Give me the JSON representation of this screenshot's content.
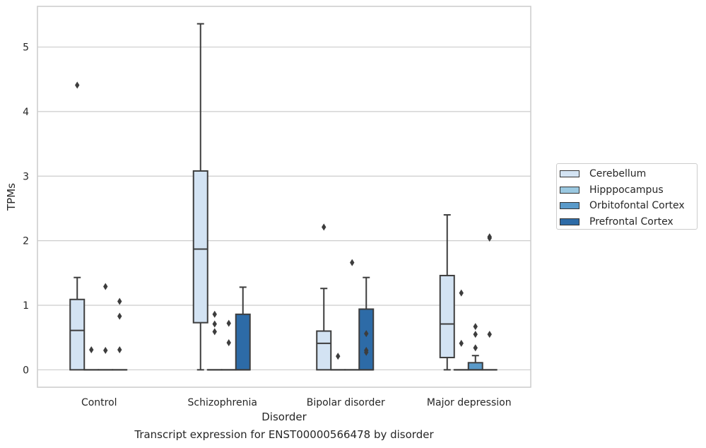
{
  "chart_data": {
    "type": "box",
    "xlabel": "Disorder",
    "ylabel": "TPMs",
    "caption": "Transcript expression for ENST00000566478 by disorder",
    "ylim": [
      -0.27,
      5.63
    ],
    "yticks": [
      0,
      1,
      2,
      3,
      4,
      5
    ],
    "grid": true,
    "legend_position": "right",
    "categories": [
      "Control",
      "Schizophrenia",
      "Bipolar disorder",
      "Major depression"
    ],
    "series": [
      {
        "name": "Cerebellum",
        "color": "#d3e3f3",
        "boxes": [
          {
            "q1": 0,
            "median": 0.61,
            "q3": 1.09,
            "whisker_low": 0,
            "whisker_high": 1.43,
            "outliers": [
              4.41
            ]
          },
          {
            "q1": 0.73,
            "median": 1.87,
            "q3": 3.08,
            "whisker_low": 0,
            "whisker_high": 5.36,
            "outliers": []
          },
          {
            "q1": 0,
            "median": 0.41,
            "q3": 0.6,
            "whisker_low": 0,
            "whisker_high": 1.26,
            "outliers": [
              2.21
            ]
          },
          {
            "q1": 0.19,
            "median": 0.71,
            "q3": 1.46,
            "whisker_low": 0,
            "whisker_high": 2.4,
            "outliers": []
          }
        ]
      },
      {
        "name": "Hipppocampus",
        "color": "#9ac8e0",
        "boxes": [
          {
            "q1": 0,
            "median": 0,
            "q3": 0,
            "whisker_low": 0,
            "whisker_high": 0,
            "outliers": [
              0.31
            ]
          },
          {
            "q1": 0,
            "median": 0,
            "q3": 0,
            "whisker_low": 0,
            "whisker_high": 0,
            "outliers": [
              0.86,
              0.71,
              0.59
            ]
          },
          {
            "q1": 0,
            "median": 0,
            "q3": 0,
            "whisker_low": 0,
            "whisker_high": 0,
            "outliers": [
              0.21
            ]
          },
          {
            "q1": 0,
            "median": 0,
            "q3": 0,
            "whisker_low": 0,
            "whisker_high": 0,
            "outliers": [
              1.19,
              0.41
            ]
          }
        ]
      },
      {
        "name": "Orbitofontal Cortex",
        "color": "#5a9ac9",
        "boxes": [
          {
            "q1": 0,
            "median": 0,
            "q3": 0,
            "whisker_low": 0,
            "whisker_high": 0,
            "outliers": [
              1.29,
              0.3
            ]
          },
          {
            "q1": 0,
            "median": 0,
            "q3": 0,
            "whisker_low": 0,
            "whisker_high": 0,
            "outliers": [
              0.72,
              0.42
            ]
          },
          {
            "q1": 0,
            "median": 0,
            "q3": 0,
            "whisker_low": 0,
            "whisker_high": 0,
            "outliers": [
              1.66
            ]
          },
          {
            "q1": 0,
            "median": 0,
            "q3": 0.11,
            "whisker_low": 0,
            "whisker_high": 0.22,
            "outliers": [
              0.67,
              0.55,
              0.34
            ]
          }
        ]
      },
      {
        "name": "Prefrontal Cortex",
        "color": "#2d6ba7",
        "boxes": [
          {
            "q1": 0,
            "median": 0,
            "q3": 0,
            "whisker_low": 0,
            "whisker_high": 0,
            "outliers": [
              1.06,
              0.83,
              0.31
            ]
          },
          {
            "q1": 0,
            "median": 0,
            "q3": 0.86,
            "whisker_low": 0,
            "whisker_high": 1.28,
            "outliers": []
          },
          {
            "q1": 0,
            "median": 0,
            "q3": 0.94,
            "whisker_low": 0,
            "whisker_high": 1.43,
            "outliers": [
              0.56,
              0.3,
              0.27
            ]
          },
          {
            "q1": 0,
            "median": 0,
            "q3": 0,
            "whisker_low": 0,
            "whisker_high": 0,
            "outliers": [
              2.06,
              2.04,
              0.55
            ]
          }
        ]
      }
    ]
  }
}
